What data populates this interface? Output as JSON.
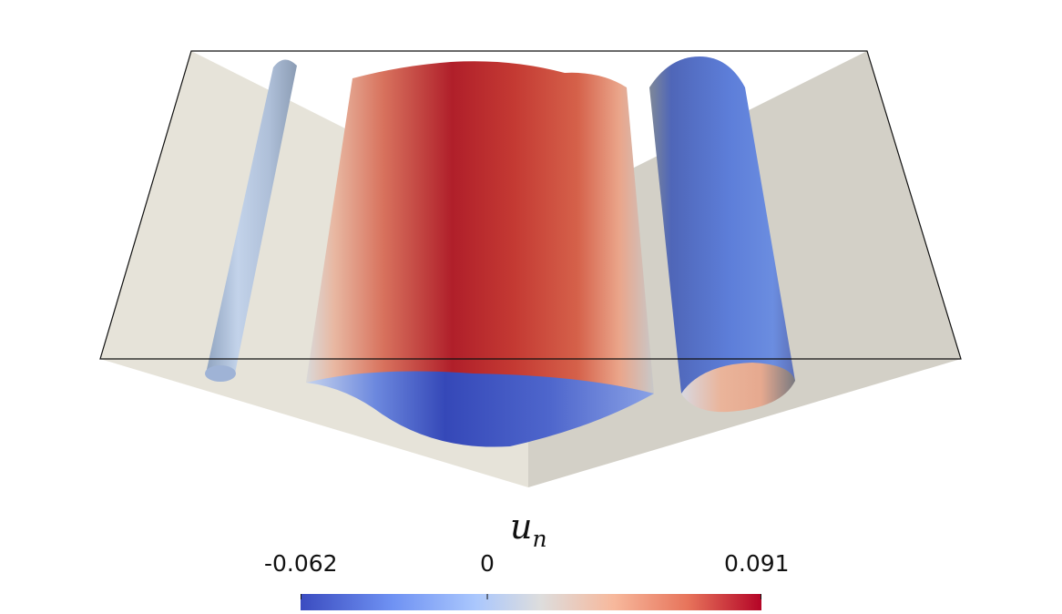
{
  "colorbar": {
    "variable": "u",
    "subscript": "n",
    "min_label": "-0.062",
    "mid_label": "0",
    "max_label": "0.091",
    "min": -0.062,
    "max": 0.091,
    "colormap": [
      "#3b4cc0",
      "#6f92f3",
      "#aac7fd",
      "#dddddd",
      "#f7b89c",
      "#e7745b",
      "#b40426"
    ]
  },
  "colors": {
    "base_left": "#e6e3d9",
    "base_right": "#d3d0c7",
    "background": "#ffffff"
  }
}
